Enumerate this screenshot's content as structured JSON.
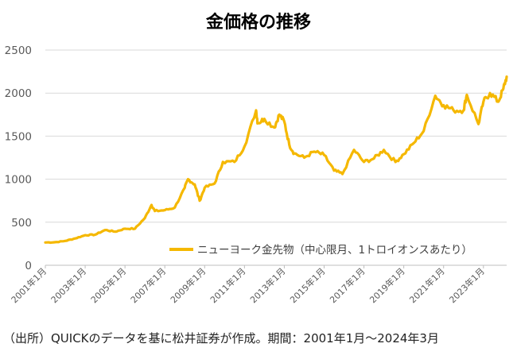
{
  "title": "金価格の推移",
  "source_note": "（出所）QUICKのデータを基に松井証券が作成。期間：2001年1月〜2024年3月",
  "colors": {
    "series": "#f5b800",
    "grid": "#d9d9d9",
    "axis_text": "#595959"
  },
  "chart_data": {
    "type": "line",
    "title": "金価格の推移",
    "ylim": [
      0,
      2500
    ],
    "yticks": [
      0,
      500,
      1000,
      1500,
      2000,
      2500
    ],
    "xlim": [
      "2001-01",
      "2024-03"
    ],
    "xticks": [
      "2001年1月",
      "2003年1月",
      "2005年1月",
      "2007年1月",
      "2009年1月",
      "2011年1月",
      "2013年1月",
      "2015年1月",
      "2017年1月",
      "2019年1月",
      "2021年1月",
      "2023年1月"
    ],
    "grid": true,
    "legend_position": "bottom-right-inside",
    "series": [
      {
        "name": "ニューヨーク金先物（中心限月、1トロイオンスあたり）",
        "x": [
          "2001-01",
          "2001-07",
          "2002-01",
          "2002-07",
          "2003-01",
          "2003-07",
          "2004-01",
          "2004-07",
          "2005-01",
          "2005-07",
          "2006-01",
          "2006-05",
          "2006-07",
          "2007-01",
          "2007-07",
          "2008-01",
          "2008-03",
          "2008-07",
          "2008-10",
          "2009-01",
          "2009-07",
          "2009-12",
          "2010-07",
          "2011-01",
          "2011-08",
          "2011-09",
          "2012-01",
          "2012-07",
          "2012-10",
          "2013-01",
          "2013-04",
          "2013-07",
          "2014-01",
          "2014-07",
          "2015-01",
          "2015-07",
          "2015-12",
          "2016-07",
          "2017-01",
          "2017-07",
          "2018-01",
          "2018-08",
          "2019-01",
          "2019-07",
          "2020-01",
          "2020-08",
          "2021-01",
          "2021-07",
          "2022-01",
          "2022-03",
          "2022-10",
          "2023-01",
          "2023-05",
          "2023-10",
          "2024-01",
          "2024-03"
        ],
        "values": [
          265,
          268,
          283,
          312,
          350,
          355,
          410,
          390,
          425,
          425,
          550,
          700,
          630,
          640,
          670,
          900,
          1000,
          940,
          750,
          900,
          950,
          1200,
          1200,
          1380,
          1800,
          1650,
          1700,
          1600,
          1750,
          1670,
          1400,
          1300,
          1250,
          1320,
          1280,
          1100,
          1060,
          1340,
          1200,
          1240,
          1340,
          1200,
          1290,
          1420,
          1560,
          1970,
          1860,
          1800,
          1800,
          1980,
          1640,
          1900,
          2000,
          1900,
          2050,
          2190
        ]
      }
    ]
  }
}
